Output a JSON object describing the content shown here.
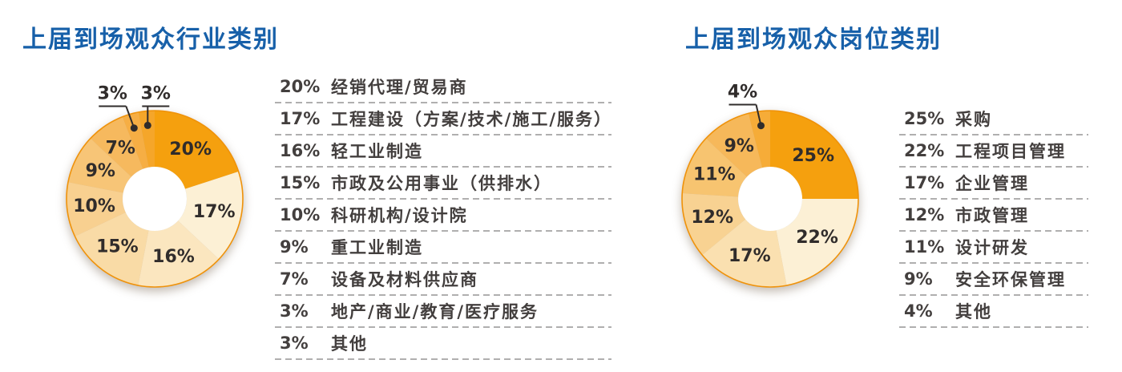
{
  "style": {
    "background": "#FFFFFF",
    "title_color": "#1760A9",
    "legend_text_color": "#433F3E",
    "slice_label_color": "#302C2B",
    "divider_color": "#B0AFAF",
    "ring_stroke_color": "#EF920A",
    "hole_color": "#FFFFFF",
    "callout_dot_color": "#302C2B"
  },
  "chart_data": [
    {
      "type": "pie",
      "subtype": "donut",
      "title": "上届到场观众行业类别",
      "unit": "%",
      "start_angle": 0,
      "direction": "clockwise",
      "legend_position": "right",
      "categories": [
        "经销代理/贸易商",
        "工程建设（方案/技术/施工/服务）",
        "轻工业制造",
        "市政及公用事业（供排水）",
        "科研机构/设计院",
        "重工业制造",
        "设备及材料供应商",
        "地产/商业/教育/医疗服务",
        "其他"
      ],
      "values": [
        20,
        17,
        16,
        15,
        10,
        9,
        7,
        3,
        3
      ],
      "colors": [
        "#F5A00E",
        "#FCF0D5",
        "#FBE6BF",
        "#F9DBA6",
        "#F8D090",
        "#F7C577",
        "#F6B95E",
        "#F6AE44",
        "#F5A62A"
      ],
      "callout_indices": [
        7,
        8
      ]
    },
    {
      "type": "pie",
      "subtype": "donut",
      "title": "上届到场观众岗位类别",
      "unit": "%",
      "start_angle": 0,
      "direction": "clockwise",
      "legend_position": "right",
      "categories": [
        "采购",
        "工程项目管理",
        "企业管理",
        "市政管理",
        "设计研发",
        "安全环保管理",
        "其他"
      ],
      "values": [
        25,
        22,
        17,
        12,
        11,
        9,
        4
      ],
      "colors": [
        "#F5A00E",
        "#FCF0D5",
        "#FAE0B0",
        "#F8D292",
        "#F7C470",
        "#F6B85A",
        "#F6AC38"
      ],
      "callout_indices": [
        6
      ]
    }
  ]
}
